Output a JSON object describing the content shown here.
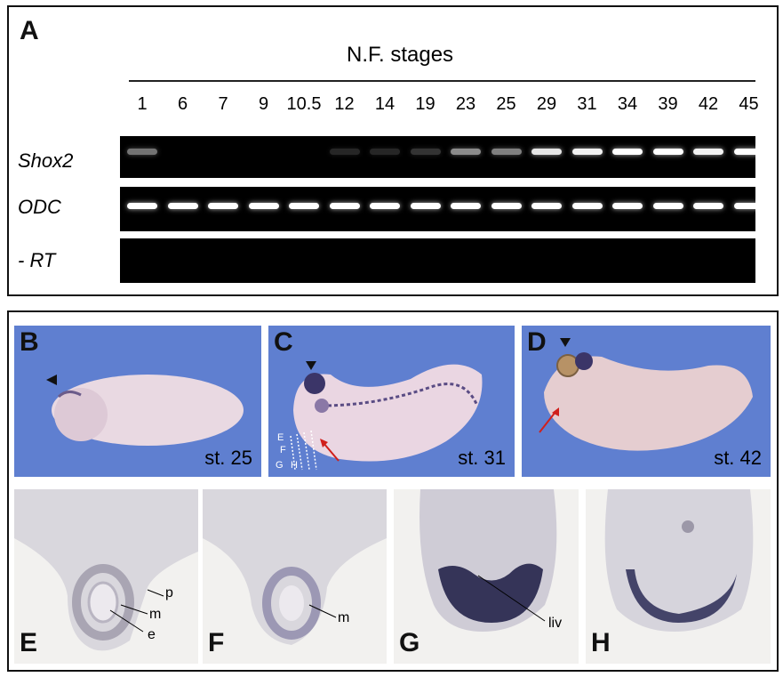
{
  "panelA": {
    "letter": "A",
    "header": "N.F. stages",
    "stages": [
      "1",
      "6",
      "7",
      "9",
      "10.5",
      "12",
      "14",
      "19",
      "23",
      "25",
      "29",
      "31",
      "34",
      "39",
      "42",
      "45"
    ],
    "rows": [
      {
        "label": "Shox2",
        "intensity": [
          0.45,
          0,
          0,
          0,
          0,
          0.15,
          0.15,
          0.2,
          0.55,
          0.5,
          0.9,
          0.95,
          1,
          1,
          0.95,
          1
        ]
      },
      {
        "label": "ODC",
        "intensity": [
          1,
          1,
          1,
          1,
          1,
          1,
          1,
          1,
          1,
          1,
          1,
          1,
          1,
          1,
          1,
          1
        ]
      },
      {
        "label": "- RT",
        "intensity": [
          0,
          0,
          0,
          0,
          0,
          0,
          0,
          0,
          0,
          0,
          0,
          0,
          0,
          0,
          0,
          0
        ]
      }
    ]
  },
  "panelB": {
    "letter": "B",
    "stage": "st. 25"
  },
  "panelC": {
    "letter": "C",
    "stage": "st. 31",
    "section_marks": [
      "E",
      "F",
      "G",
      "H"
    ]
  },
  "panelD": {
    "letter": "D",
    "stage": "st. 42"
  },
  "panelE": {
    "letter": "E",
    "labels": [
      "p",
      "m",
      "e"
    ]
  },
  "panelF": {
    "letter": "F",
    "labels": [
      "m"
    ]
  },
  "panelG": {
    "letter": "G",
    "labels": [
      "liv"
    ]
  },
  "panelH": {
    "letter": "H"
  },
  "colors": {
    "photo_bg": "#5f7fd0",
    "stain": "#23234a",
    "section_bg": "#f2f1ef",
    "arrow": "#d0201c"
  }
}
